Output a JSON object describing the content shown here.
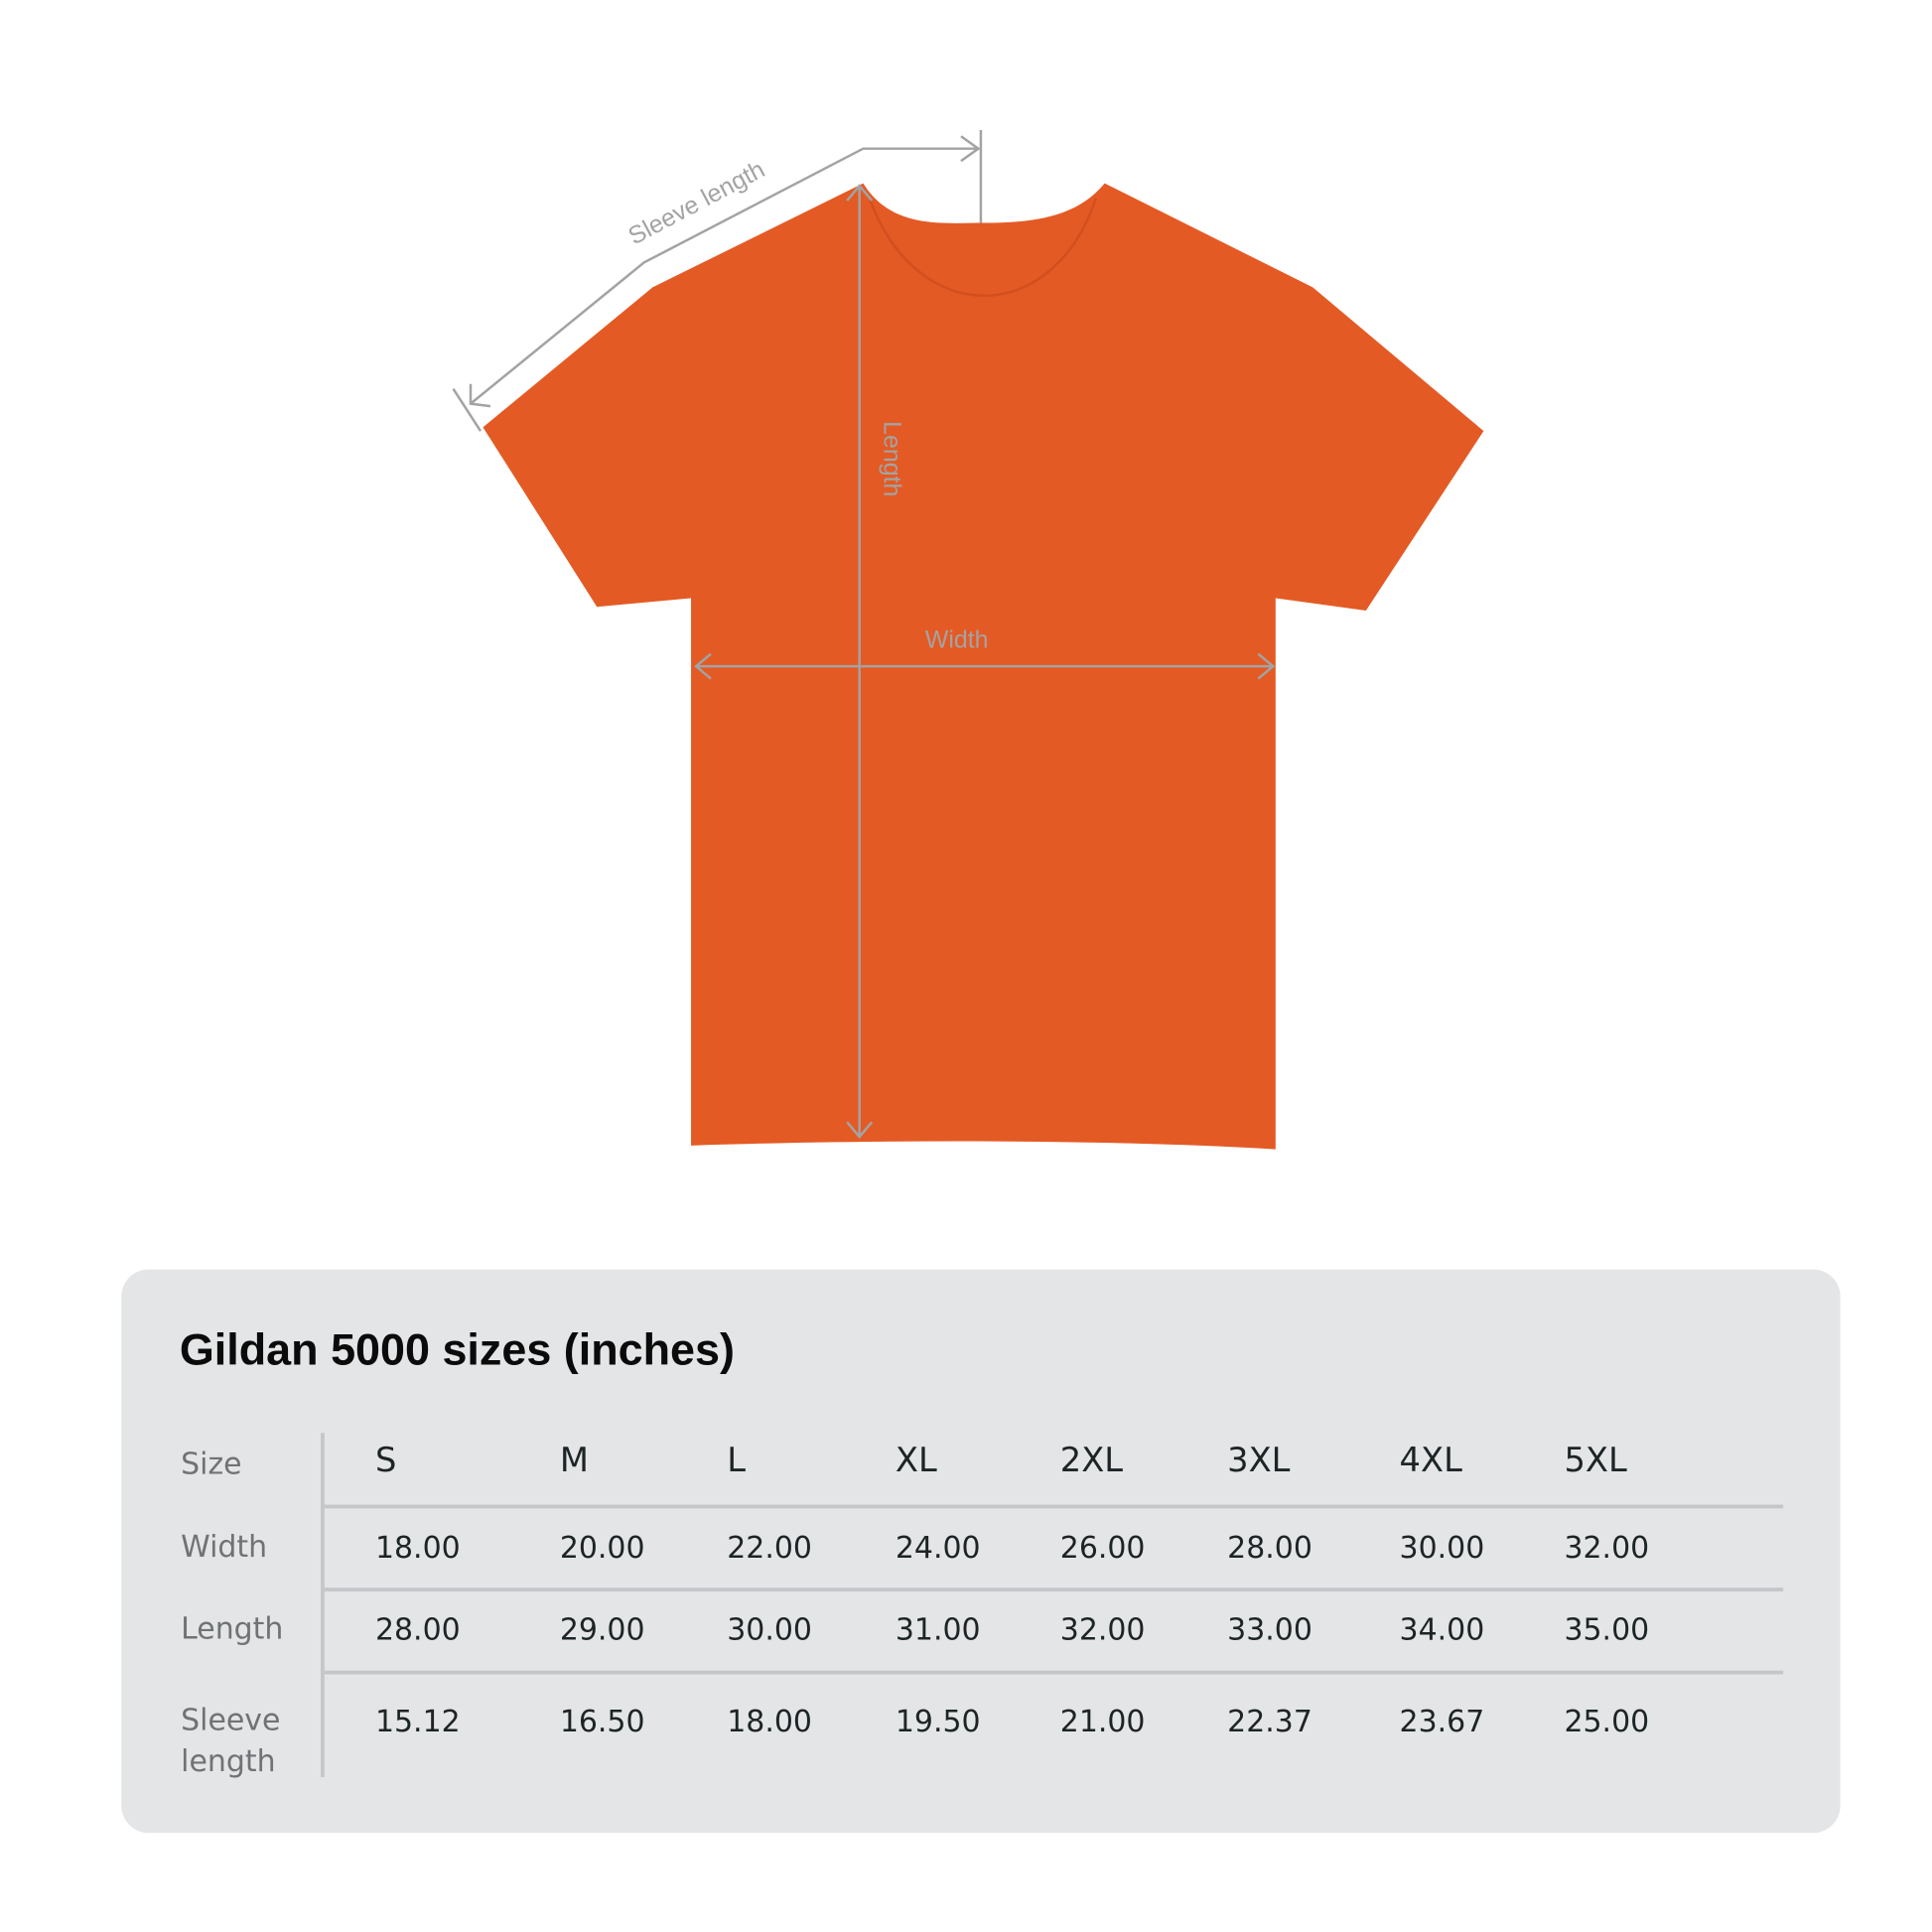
{
  "diagram": {
    "shirt_color": "#e45a24",
    "annotation_color": "#a3a3a3",
    "labels": {
      "sleeve": "Sleeve length",
      "length": "Length",
      "width": "Width"
    }
  },
  "table": {
    "title": "Gildan 5000 sizes (inches)",
    "panel_color": "#e4e5e7",
    "header_label": "Size",
    "sizes": [
      "S",
      "M",
      "L",
      "XL",
      "2XL",
      "3XL",
      "4XL",
      "5XL"
    ],
    "rows": [
      {
        "label": "Width",
        "values": [
          "18.00",
          "20.00",
          "22.00",
          "24.00",
          "26.00",
          "28.00",
          "30.00",
          "32.00"
        ]
      },
      {
        "label": "Length",
        "values": [
          "28.00",
          "29.00",
          "30.00",
          "31.00",
          "32.00",
          "33.00",
          "34.00",
          "35.00"
        ]
      },
      {
        "label": "Sleeve length",
        "values": [
          "15.12",
          "16.50",
          "18.00",
          "19.50",
          "21.00",
          "22.37",
          "23.67",
          "25.00"
        ]
      }
    ]
  }
}
